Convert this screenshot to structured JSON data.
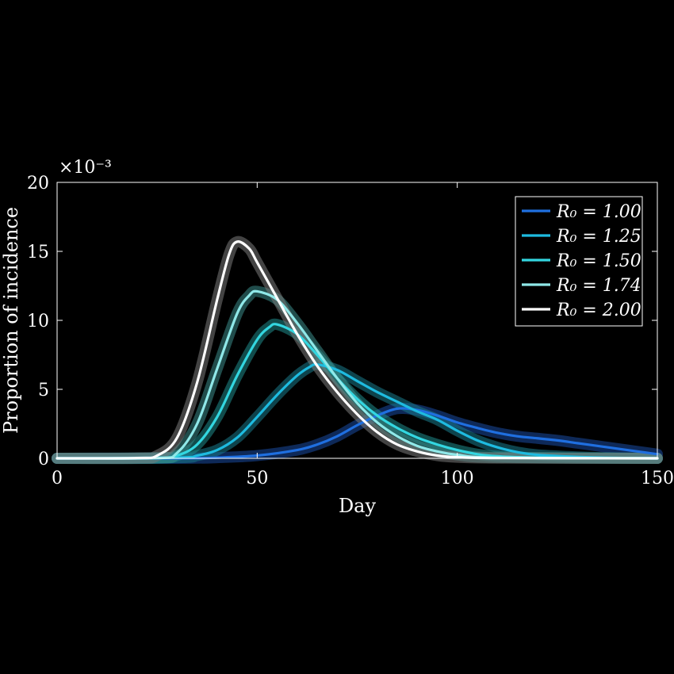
{
  "chart_data": {
    "type": "line",
    "xlabel": "Day",
    "ylabel": "Proportion of incidence",
    "exponent_label": "×10⁻³",
    "xlim": [
      0,
      150
    ],
    "ylim": [
      0,
      20
    ],
    "x_ticks": [
      0,
      50,
      100,
      150
    ],
    "y_ticks": [
      0,
      5,
      10,
      15,
      20
    ],
    "grid": false,
    "legend_position": "top-right",
    "series": [
      {
        "name": "R₀ = 1.00",
        "color": "#1f6fe0",
        "band_color": "#1a4aa0",
        "points": [
          [
            0,
            0
          ],
          [
            30,
            0
          ],
          [
            40,
            0.05
          ],
          [
            50,
            0.2
          ],
          [
            60,
            0.6
          ],
          [
            65,
            1.0
          ],
          [
            70,
            1.6
          ],
          [
            75,
            2.4
          ],
          [
            80,
            3.1
          ],
          [
            85,
            3.6
          ],
          [
            90,
            3.5
          ],
          [
            95,
            3.1
          ],
          [
            100,
            2.6
          ],
          [
            105,
            2.2
          ],
          [
            110,
            1.85
          ],
          [
            115,
            1.6
          ],
          [
            120,
            1.45
          ],
          [
            125,
            1.3
          ],
          [
            130,
            1.1
          ],
          [
            135,
            0.9
          ],
          [
            140,
            0.7
          ],
          [
            145,
            0.5
          ],
          [
            150,
            0.3
          ]
        ]
      },
      {
        "name": "R₀ = 1.25",
        "color": "#1ebbe0",
        "band_color": "#1a7a8a",
        "points": [
          [
            0,
            0
          ],
          [
            30,
            0.05
          ],
          [
            35,
            0.2
          ],
          [
            40,
            0.6
          ],
          [
            45,
            1.5
          ],
          [
            50,
            3.0
          ],
          [
            55,
            4.6
          ],
          [
            60,
            6.0
          ],
          [
            63,
            6.6
          ],
          [
            65,
            6.8
          ],
          [
            70,
            6.4
          ],
          [
            75,
            5.6
          ],
          [
            80,
            4.8
          ],
          [
            85,
            4.1
          ],
          [
            90,
            3.4
          ],
          [
            95,
            2.8
          ],
          [
            100,
            2.0
          ],
          [
            105,
            1.3
          ],
          [
            110,
            0.8
          ],
          [
            115,
            0.45
          ],
          [
            120,
            0.25
          ],
          [
            130,
            0.1
          ],
          [
            140,
            0.03
          ],
          [
            150,
            0
          ]
        ]
      },
      {
        "name": "R₀ = 1.50",
        "color": "#33d6e0",
        "band_color": "#1f8a8a",
        "points": [
          [
            0,
            0
          ],
          [
            25,
            0.02
          ],
          [
            30,
            0.2
          ],
          [
            35,
            1.0
          ],
          [
            40,
            3.0
          ],
          [
            45,
            6.0
          ],
          [
            50,
            8.6
          ],
          [
            53,
            9.5
          ],
          [
            55,
            9.7
          ],
          [
            60,
            9.0
          ],
          [
            65,
            7.5
          ],
          [
            70,
            5.8
          ],
          [
            75,
            4.3
          ],
          [
            80,
            3.1
          ],
          [
            85,
            2.2
          ],
          [
            90,
            1.5
          ],
          [
            95,
            1.0
          ],
          [
            100,
            0.6
          ],
          [
            105,
            0.3
          ],
          [
            110,
            0.15
          ],
          [
            120,
            0.05
          ],
          [
            150,
            0
          ]
        ]
      },
      {
        "name": "R₀ = 1.74",
        "color": "#8fe8e8",
        "band_color": "#3a8a88",
        "points": [
          [
            0,
            0
          ],
          [
            25,
            0.02
          ],
          [
            30,
            0.4
          ],
          [
            35,
            2.5
          ],
          [
            40,
            6.5
          ],
          [
            45,
            10.5
          ],
          [
            48,
            11.8
          ],
          [
            50,
            12.1
          ],
          [
            55,
            11.5
          ],
          [
            60,
            9.8
          ],
          [
            65,
            7.8
          ],
          [
            70,
            5.8
          ],
          [
            75,
            4.0
          ],
          [
            80,
            2.6
          ],
          [
            85,
            1.6
          ],
          [
            90,
            0.9
          ],
          [
            95,
            0.5
          ],
          [
            100,
            0.25
          ],
          [
            110,
            0.05
          ],
          [
            150,
            0
          ]
        ]
      },
      {
        "name": "R₀ = 2.00",
        "color": "#ffffff",
        "band_color": "#7a7a7a",
        "points": [
          [
            0,
            0
          ],
          [
            20,
            0.02
          ],
          [
            25,
            0.2
          ],
          [
            30,
            1.5
          ],
          [
            35,
            5.5
          ],
          [
            40,
            11.5
          ],
          [
            43,
            14.8
          ],
          [
            45,
            15.7
          ],
          [
            48,
            15.2
          ],
          [
            50,
            14.2
          ],
          [
            55,
            11.6
          ],
          [
            60,
            9.0
          ],
          [
            65,
            6.7
          ],
          [
            70,
            4.8
          ],
          [
            75,
            3.2
          ],
          [
            80,
            1.9
          ],
          [
            85,
            1.0
          ],
          [
            90,
            0.5
          ],
          [
            95,
            0.2
          ],
          [
            100,
            0.08
          ],
          [
            110,
            0.02
          ],
          [
            150,
            0
          ]
        ]
      }
    ]
  }
}
